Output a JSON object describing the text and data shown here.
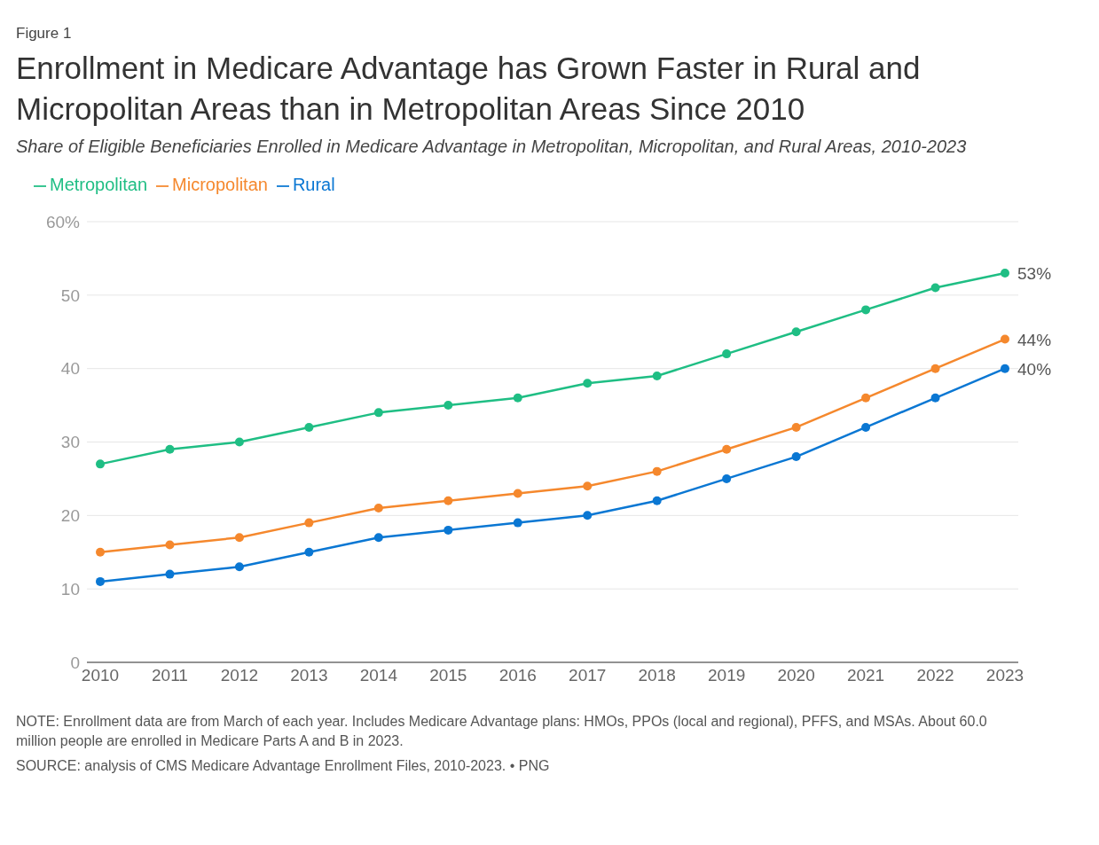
{
  "chart_data": {
    "type": "line",
    "title": "Enrollment in Medicare Advantage has Grown Faster in Rural and Micropolitan Areas than in Metropolitan Areas Since 2010",
    "subtitle": "Share of Eligible Beneficiaries Enrolled in Medicare Advantage in Metropolitan, Micropolitan, and Rural Areas, 2010-2023",
    "categories": [
      "2010",
      "2011",
      "2012",
      "2013",
      "2014",
      "2015",
      "2016",
      "2017",
      "2018",
      "2019",
      "2020",
      "2021",
      "2022",
      "2023"
    ],
    "series": [
      {
        "name": "Metropolitan",
        "color": "#1fbe84",
        "values": [
          27,
          29,
          30,
          32,
          34,
          35,
          36,
          38,
          39,
          42,
          45,
          48,
          51,
          53
        ],
        "value_labels": [
          null,
          null,
          null,
          null,
          null,
          null,
          null,
          null,
          null,
          null,
          null,
          null,
          null,
          "53%"
        ]
      },
      {
        "name": "Micropolitan",
        "color": "#f5882d",
        "values": [
          15,
          16,
          17,
          19,
          21,
          22,
          23,
          24,
          26,
          29,
          32,
          36,
          40,
          44
        ],
        "value_labels": [
          null,
          null,
          null,
          null,
          null,
          null,
          null,
          null,
          null,
          null,
          null,
          null,
          null,
          "44%"
        ]
      },
      {
        "name": "Rural",
        "color": "#0a77d3",
        "values": [
          11,
          12,
          13,
          15,
          17,
          18,
          19,
          20,
          22,
          25,
          28,
          32,
          36,
          40
        ],
        "value_labels": [
          null,
          null,
          null,
          null,
          null,
          null,
          null,
          null,
          null,
          null,
          null,
          null,
          null,
          "40%"
        ]
      }
    ],
    "ylim": [
      0,
      60
    ],
    "yticks": [
      0,
      10,
      20,
      30,
      40,
      50,
      {
        "value": 60,
        "label": "60%"
      }
    ],
    "grid": "y",
    "legend": "top left",
    "marker": "circle",
    "line_style": "solid",
    "annotations": [
      "Figure 1",
      "NOTE: Enrollment data are from March of each year. Includes Medicare Advantage plans: HMOs, PPOs (local and regional), PFFS, and MSAs. About 60.0 million people are enrolled in Medicare Parts A and B in 2023.",
      "SOURCE: analysis of CMS Medicare Advantage Enrollment Files, 2010-2023. • PNG"
    ]
  }
}
